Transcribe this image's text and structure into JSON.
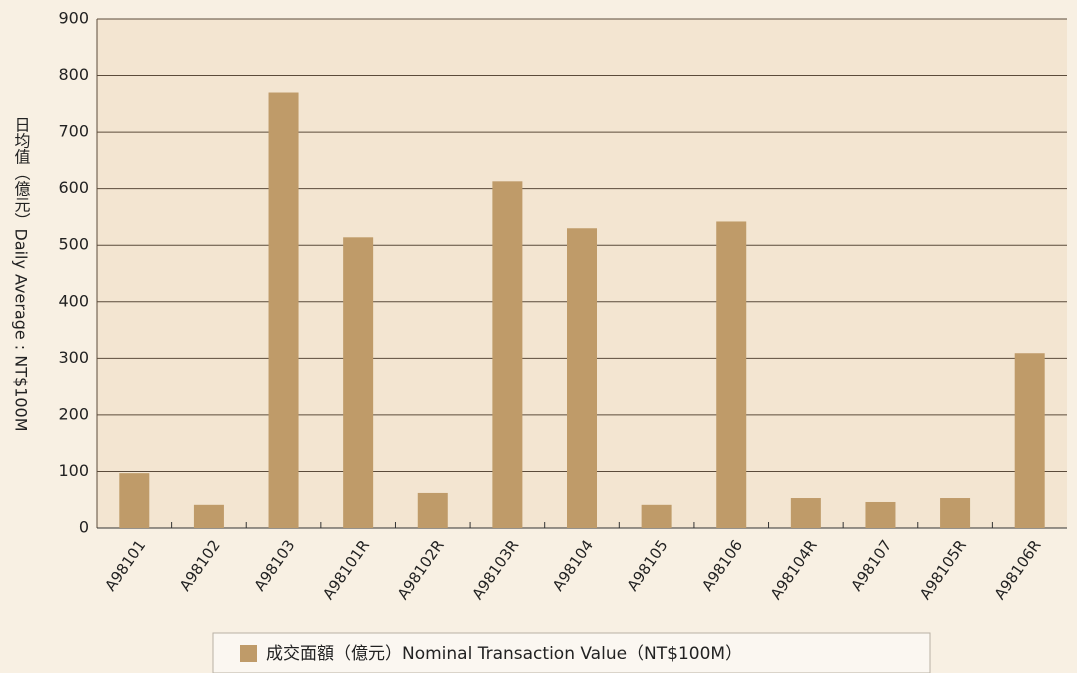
{
  "chart_data": {
    "type": "bar",
    "y_label": "日均值（億元）Daily Average : NT$100M",
    "categories": [
      "A98101",
      "A98102",
      "A98103",
      "A98101R",
      "A98102R",
      "A98103R",
      "A98104",
      "A98105",
      "A98106",
      "A98104R",
      "A98107",
      "A98105R",
      "A98106R"
    ],
    "series": [
      {
        "name": "成交面額（億元）Nominal Transaction Value（NT$100M）",
        "color": "#bf9b69",
        "values": [
          97,
          41,
          770,
          514,
          62,
          613,
          530,
          41,
          542,
          53,
          46,
          53,
          309
        ]
      }
    ],
    "ylim": [
      0,
      900
    ],
    "yticks": [
      0,
      100,
      200,
      300,
      400,
      500,
      600,
      700,
      800,
      900
    ],
    "grid": true,
    "legend": "bottom"
  }
}
